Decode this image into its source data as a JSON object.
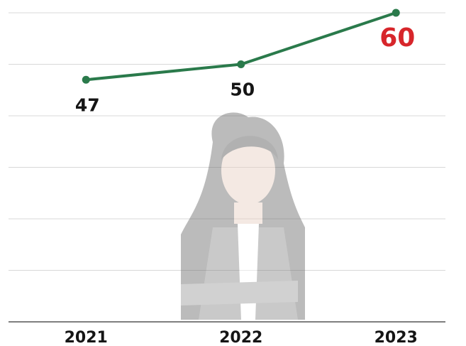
{
  "chart_data": {
    "type": "line",
    "categories": [
      "2021",
      "2022",
      "2023"
    ],
    "values": [
      47,
      50,
      60
    ],
    "color": "#2a7a4b",
    "value_label_colors": [
      "#151515",
      "#151515",
      "#d7262b"
    ],
    "ylim": [
      0,
      60
    ],
    "yticks": [
      0,
      10,
      20,
      30,
      40,
      50,
      60
    ],
    "grid": true
  }
}
